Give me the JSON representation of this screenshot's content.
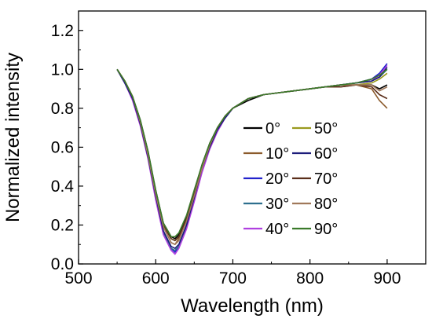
{
  "chart_data": {
    "type": "line",
    "xlabel": "Wavelength (nm)",
    "ylabel": "Normalized intensity",
    "xlim": [
      500,
      950
    ],
    "ylim": [
      0.0,
      1.3
    ],
    "xticks": [
      "500",
      "600",
      "700",
      "800",
      "900"
    ],
    "xtick_values": [
      500,
      600,
      700,
      800,
      900
    ],
    "yticks": [
      "0.0",
      "0.2",
      "0.4",
      "0.6",
      "0.8",
      "1.0",
      "1.2"
    ],
    "ytick_values": [
      0.0,
      0.2,
      0.4,
      0.6,
      0.8,
      1.0,
      1.2
    ],
    "grid": false,
    "legend_position": "right",
    "x": [
      550,
      560,
      570,
      580,
      590,
      600,
      610,
      620,
      625,
      630,
      640,
      650,
      660,
      670,
      680,
      690,
      700,
      720,
      740,
      760,
      780,
      800,
      820,
      840,
      860,
      880,
      890,
      900
    ],
    "series": [
      {
        "name": "0°",
        "color": "#000000",
        "values": [
          1.0,
          0.94,
          0.86,
          0.74,
          0.58,
          0.38,
          0.21,
          0.14,
          0.13,
          0.15,
          0.24,
          0.37,
          0.51,
          0.62,
          0.7,
          0.76,
          0.8,
          0.84,
          0.87,
          0.88,
          0.89,
          0.9,
          0.91,
          0.92,
          0.92,
          0.92,
          0.9,
          0.92
        ]
      },
      {
        "name": "10°",
        "color": "#8b5a2b",
        "values": [
          1.0,
          0.94,
          0.86,
          0.73,
          0.57,
          0.36,
          0.19,
          0.11,
          0.1,
          0.13,
          0.22,
          0.36,
          0.5,
          0.61,
          0.7,
          0.76,
          0.8,
          0.85,
          0.87,
          0.88,
          0.89,
          0.9,
          0.91,
          0.91,
          0.92,
          0.9,
          0.84,
          0.8
        ]
      },
      {
        "name": "20°",
        "color": "#2222cc",
        "values": [
          1.0,
          0.93,
          0.85,
          0.72,
          0.55,
          0.34,
          0.16,
          0.08,
          0.06,
          0.09,
          0.19,
          0.33,
          0.48,
          0.6,
          0.69,
          0.75,
          0.8,
          0.85,
          0.87,
          0.88,
          0.89,
          0.9,
          0.91,
          0.92,
          0.93,
          0.95,
          0.98,
          1.03
        ]
      },
      {
        "name": "30°",
        "color": "#2e6f8e",
        "values": [
          1.0,
          0.93,
          0.85,
          0.72,
          0.55,
          0.34,
          0.16,
          0.08,
          0.07,
          0.09,
          0.2,
          0.34,
          0.48,
          0.6,
          0.69,
          0.75,
          0.8,
          0.85,
          0.87,
          0.88,
          0.89,
          0.9,
          0.91,
          0.92,
          0.93,
          0.94,
          0.96,
          1.0
        ]
      },
      {
        "name": "40°",
        "color": "#b040e0",
        "values": [
          1.0,
          0.93,
          0.84,
          0.71,
          0.54,
          0.33,
          0.15,
          0.07,
          0.05,
          0.08,
          0.18,
          0.32,
          0.47,
          0.59,
          0.68,
          0.75,
          0.8,
          0.85,
          0.87,
          0.88,
          0.89,
          0.9,
          0.91,
          0.92,
          0.93,
          0.94,
          0.97,
          1.02
        ]
      },
      {
        "name": "50°",
        "color": "#9a9a1e",
        "values": [
          1.0,
          0.94,
          0.86,
          0.73,
          0.57,
          0.37,
          0.2,
          0.13,
          0.12,
          0.14,
          0.23,
          0.36,
          0.5,
          0.61,
          0.7,
          0.76,
          0.8,
          0.85,
          0.87,
          0.88,
          0.89,
          0.9,
          0.91,
          0.92,
          0.92,
          0.93,
          0.95,
          0.98
        ]
      },
      {
        "name": "60°",
        "color": "#1c1c7a",
        "values": [
          1.0,
          0.93,
          0.85,
          0.72,
          0.55,
          0.35,
          0.17,
          0.09,
          0.08,
          0.1,
          0.2,
          0.34,
          0.49,
          0.6,
          0.69,
          0.75,
          0.8,
          0.85,
          0.87,
          0.88,
          0.89,
          0.9,
          0.91,
          0.92,
          0.93,
          0.94,
          0.96,
          1.01
        ]
      },
      {
        "name": "70°",
        "color": "#5a2e1a",
        "values": [
          1.0,
          0.94,
          0.86,
          0.73,
          0.57,
          0.37,
          0.2,
          0.13,
          0.12,
          0.14,
          0.23,
          0.36,
          0.5,
          0.61,
          0.7,
          0.76,
          0.8,
          0.85,
          0.87,
          0.88,
          0.89,
          0.9,
          0.91,
          0.91,
          0.92,
          0.91,
          0.87,
          0.85
        ]
      },
      {
        "name": "80°",
        "color": "#a0785a",
        "values": [
          1.0,
          0.94,
          0.86,
          0.73,
          0.56,
          0.36,
          0.19,
          0.11,
          0.1,
          0.12,
          0.22,
          0.35,
          0.49,
          0.61,
          0.7,
          0.76,
          0.8,
          0.85,
          0.87,
          0.88,
          0.89,
          0.9,
          0.91,
          0.92,
          0.92,
          0.92,
          0.89,
          0.91
        ]
      },
      {
        "name": "90°",
        "color": "#3a7a2a",
        "values": [
          1.0,
          0.94,
          0.86,
          0.74,
          0.58,
          0.38,
          0.21,
          0.14,
          0.14,
          0.16,
          0.25,
          0.38,
          0.51,
          0.62,
          0.7,
          0.76,
          0.8,
          0.85,
          0.87,
          0.88,
          0.89,
          0.9,
          0.91,
          0.92,
          0.93,
          0.95,
          0.97,
          1.0
        ]
      }
    ]
  }
}
